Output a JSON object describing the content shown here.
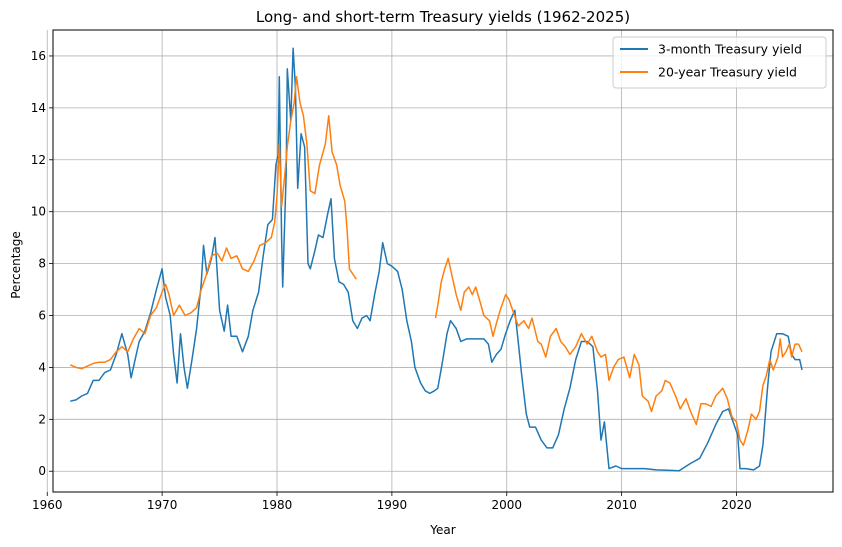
{
  "chart_data": {
    "type": "line",
    "title": "Long- and short-term Treasury yields (1962-2025)",
    "xlabel": "Year",
    "ylabel": "Percentage",
    "xlim": [
      1960.5,
      2028.4
    ],
    "ylim": [
      -0.8,
      17.0
    ],
    "xticks": [
      1960,
      1970,
      1980,
      1990,
      2000,
      2010,
      2020
    ],
    "yticks": [
      0,
      2,
      4,
      6,
      8,
      10,
      12,
      14,
      16
    ],
    "grid": true,
    "legend_position": "upper right",
    "series": [
      {
        "name": "3-month Treasury yield",
        "color": "#1f77b4",
        "points": [
          [
            1962.0,
            2.7
          ],
          [
            1962.5,
            2.75
          ],
          [
            1963.0,
            2.9
          ],
          [
            1963.5,
            3.0
          ],
          [
            1964.0,
            3.5
          ],
          [
            1964.5,
            3.5
          ],
          [
            1965.0,
            3.8
          ],
          [
            1965.5,
            3.9
          ],
          [
            1966.0,
            4.5
          ],
          [
            1966.5,
            5.3
          ],
          [
            1967.0,
            4.5
          ],
          [
            1967.3,
            3.6
          ],
          [
            1967.7,
            4.4
          ],
          [
            1968.0,
            5.0
          ],
          [
            1968.5,
            5.4
          ],
          [
            1969.0,
            6.1
          ],
          [
            1969.5,
            7.0
          ],
          [
            1970.0,
            7.8
          ],
          [
            1970.3,
            6.7
          ],
          [
            1970.7,
            6.0
          ],
          [
            1971.0,
            4.5
          ],
          [
            1971.3,
            3.4
          ],
          [
            1971.6,
            5.3
          ],
          [
            1971.9,
            4.0
          ],
          [
            1972.2,
            3.2
          ],
          [
            1972.6,
            4.3
          ],
          [
            1973.0,
            5.5
          ],
          [
            1973.4,
            7.2
          ],
          [
            1973.6,
            8.7
          ],
          [
            1973.9,
            7.6
          ],
          [
            1974.3,
            8.2
          ],
          [
            1974.6,
            9.0
          ],
          [
            1975.0,
            6.2
          ],
          [
            1975.4,
            5.4
          ],
          [
            1975.7,
            6.4
          ],
          [
            1976.0,
            5.2
          ],
          [
            1976.5,
            5.2
          ],
          [
            1977.0,
            4.6
          ],
          [
            1977.5,
            5.2
          ],
          [
            1977.9,
            6.2
          ],
          [
            1978.4,
            6.9
          ],
          [
            1978.8,
            8.3
          ],
          [
            1979.2,
            9.5
          ],
          [
            1979.6,
            9.7
          ],
          [
            1979.9,
            11.8
          ],
          [
            1980.1,
            12.2
          ],
          [
            1980.2,
            15.2
          ],
          [
            1980.4,
            9.0
          ],
          [
            1980.5,
            7.1
          ],
          [
            1980.8,
            11.5
          ],
          [
            1980.9,
            15.5
          ],
          [
            1981.2,
            13.5
          ],
          [
            1981.4,
            16.3
          ],
          [
            1981.6,
            14.8
          ],
          [
            1981.8,
            10.9
          ],
          [
            1982.1,
            13.0
          ],
          [
            1982.4,
            12.5
          ],
          [
            1982.7,
            8.0
          ],
          [
            1982.9,
            7.8
          ],
          [
            1983.3,
            8.5
          ],
          [
            1983.6,
            9.1
          ],
          [
            1984.0,
            9.0
          ],
          [
            1984.4,
            9.9
          ],
          [
            1984.7,
            10.5
          ],
          [
            1985.0,
            8.2
          ],
          [
            1985.4,
            7.3
          ],
          [
            1985.8,
            7.2
          ],
          [
            1986.2,
            6.9
          ],
          [
            1986.6,
            5.8
          ],
          [
            1987.0,
            5.5
          ],
          [
            1987.4,
            5.9
          ],
          [
            1987.8,
            6.0
          ],
          [
            1988.1,
            5.8
          ],
          [
            1988.5,
            6.8
          ],
          [
            1988.9,
            7.7
          ],
          [
            1989.2,
            8.8
          ],
          [
            1989.6,
            8.0
          ],
          [
            1990.0,
            7.9
          ],
          [
            1990.5,
            7.7
          ],
          [
            1990.9,
            7.0
          ],
          [
            1991.3,
            5.8
          ],
          [
            1991.7,
            5.0
          ],
          [
            1992.0,
            4.0
          ],
          [
            1992.5,
            3.4
          ],
          [
            1992.9,
            3.1
          ],
          [
            1993.3,
            3.0
          ],
          [
            1993.7,
            3.1
          ],
          [
            1994.0,
            3.2
          ],
          [
            1994.4,
            4.2
          ],
          [
            1994.8,
            5.3
          ],
          [
            1995.1,
            5.8
          ],
          [
            1995.6,
            5.5
          ],
          [
            1996.0,
            5.0
          ],
          [
            1996.5,
            5.1
          ],
          [
            1997.0,
            5.1
          ],
          [
            1997.5,
            5.1
          ],
          [
            1998.0,
            5.1
          ],
          [
            1998.4,
            4.9
          ],
          [
            1998.7,
            4.2
          ],
          [
            1999.1,
            4.5
          ],
          [
            1999.5,
            4.7
          ],
          [
            1999.9,
            5.3
          ],
          [
            2000.3,
            5.8
          ],
          [
            2000.7,
            6.2
          ],
          [
            2001.0,
            5.0
          ],
          [
            2001.3,
            3.7
          ],
          [
            2001.7,
            2.2
          ],
          [
            2002.0,
            1.7
          ],
          [
            2002.5,
            1.7
          ],
          [
            2003.0,
            1.2
          ],
          [
            2003.5,
            0.9
          ],
          [
            2004.0,
            0.9
          ],
          [
            2004.5,
            1.4
          ],
          [
            2005.0,
            2.4
          ],
          [
            2005.5,
            3.2
          ],
          [
            2006.0,
            4.3
          ],
          [
            2006.5,
            5.0
          ],
          [
            2007.0,
            5.0
          ],
          [
            2007.5,
            4.8
          ],
          [
            2007.9,
            3.1
          ],
          [
            2008.2,
            1.2
          ],
          [
            2008.5,
            1.9
          ],
          [
            2008.9,
            0.1
          ],
          [
            2009.5,
            0.2
          ],
          [
            2010.0,
            0.1
          ],
          [
            2011.0,
            0.1
          ],
          [
            2012.0,
            0.1
          ],
          [
            2013.0,
            0.05
          ],
          [
            2014.0,
            0.04
          ],
          [
            2015.0,
            0.02
          ],
          [
            2016.0,
            0.3
          ],
          [
            2016.8,
            0.5
          ],
          [
            2017.5,
            1.1
          ],
          [
            2018.2,
            1.8
          ],
          [
            2018.8,
            2.3
          ],
          [
            2019.3,
            2.4
          ],
          [
            2019.7,
            1.9
          ],
          [
            2020.1,
            1.4
          ],
          [
            2020.3,
            0.1
          ],
          [
            2020.8,
            0.1
          ],
          [
            2021.5,
            0.05
          ],
          [
            2022.0,
            0.2
          ],
          [
            2022.3,
            1.0
          ],
          [
            2022.7,
            3.2
          ],
          [
            2023.0,
            4.6
          ],
          [
            2023.5,
            5.3
          ],
          [
            2024.0,
            5.3
          ],
          [
            2024.5,
            5.2
          ],
          [
            2024.8,
            4.5
          ],
          [
            2025.1,
            4.3
          ],
          [
            2025.5,
            4.3
          ],
          [
            2025.7,
            3.9
          ]
        ]
      },
      {
        "name": "20-year Treasury yield",
        "color": "#ff7f0e",
        "points": [
          [
            1962.0,
            4.1
          ],
          [
            1962.5,
            4.0
          ],
          [
            1963.0,
            3.95
          ],
          [
            1963.5,
            4.05
          ],
          [
            1964.0,
            4.15
          ],
          [
            1964.5,
            4.2
          ],
          [
            1965.0,
            4.2
          ],
          [
            1965.5,
            4.3
          ],
          [
            1966.0,
            4.6
          ],
          [
            1966.5,
            4.8
          ],
          [
            1967.0,
            4.6
          ],
          [
            1967.5,
            5.1
          ],
          [
            1968.0,
            5.5
          ],
          [
            1968.5,
            5.3
          ],
          [
            1969.0,
            6.0
          ],
          [
            1969.5,
            6.3
          ],
          [
            1970.0,
            6.9
          ],
          [
            1970.3,
            7.2
          ],
          [
            1970.6,
            6.8
          ],
          [
            1971.0,
            6.0
          ],
          [
            1971.5,
            6.4
          ],
          [
            1972.0,
            6.0
          ],
          [
            1972.5,
            6.1
          ],
          [
            1973.0,
            6.3
          ],
          [
            1973.4,
            7.0
          ],
          [
            1973.8,
            7.5
          ],
          [
            1974.3,
            8.3
          ],
          [
            1974.8,
            8.4
          ],
          [
            1975.2,
            8.1
          ],
          [
            1975.6,
            8.6
          ],
          [
            1976.0,
            8.2
          ],
          [
            1976.5,
            8.3
          ],
          [
            1977.0,
            7.8
          ],
          [
            1977.5,
            7.7
          ],
          [
            1978.0,
            8.1
          ],
          [
            1978.5,
            8.7
          ],
          [
            1979.0,
            8.8
          ],
          [
            1979.5,
            9.0
          ],
          [
            1979.8,
            9.6
          ],
          [
            1980.0,
            10.6
          ],
          [
            1980.2,
            12.6
          ],
          [
            1980.4,
            10.2
          ],
          [
            1980.7,
            11.5
          ],
          [
            1980.9,
            12.5
          ],
          [
            1981.2,
            13.5
          ],
          [
            1981.5,
            14.2
          ],
          [
            1981.7,
            15.2
          ],
          [
            1982.0,
            14.2
          ],
          [
            1982.3,
            13.7
          ],
          [
            1982.6,
            12.6
          ],
          [
            1982.9,
            10.8
          ],
          [
            1983.3,
            10.7
          ],
          [
            1983.7,
            11.8
          ],
          [
            1984.2,
            12.6
          ],
          [
            1984.5,
            13.7
          ],
          [
            1984.8,
            12.3
          ],
          [
            1985.2,
            11.8
          ],
          [
            1985.5,
            11.0
          ],
          [
            1985.9,
            10.4
          ],
          [
            1986.1,
            9.3
          ],
          [
            1986.3,
            7.8
          ],
          [
            1986.6,
            7.6
          ],
          [
            1986.9,
            7.4
          ]
        ]
      },
      {
        "name": "20-year Treasury yield",
        "color": "#ff7f0e",
        "points": [
          [
            1993.8,
            5.9
          ],
          [
            1994.0,
            6.4
          ],
          [
            1994.3,
            7.3
          ],
          [
            1994.6,
            7.8
          ],
          [
            1994.9,
            8.2
          ],
          [
            1995.2,
            7.6
          ],
          [
            1995.6,
            6.8
          ],
          [
            1996.0,
            6.2
          ],
          [
            1996.3,
            6.9
          ],
          [
            1996.7,
            7.1
          ],
          [
            1997.0,
            6.8
          ],
          [
            1997.3,
            7.1
          ],
          [
            1997.7,
            6.5
          ],
          [
            1998.0,
            6.0
          ],
          [
            1998.5,
            5.8
          ],
          [
            1998.8,
            5.2
          ],
          [
            1999.1,
            5.7
          ],
          [
            1999.5,
            6.3
          ],
          [
            1999.9,
            6.8
          ],
          [
            2000.2,
            6.6
          ],
          [
            2000.6,
            6.1
          ],
          [
            2001.0,
            5.6
          ],
          [
            2001.5,
            5.8
          ],
          [
            2001.9,
            5.5
          ],
          [
            2002.2,
            5.9
          ],
          [
            2002.7,
            5.0
          ],
          [
            2003.0,
            4.9
          ],
          [
            2003.4,
            4.4
          ],
          [
            2003.8,
            5.2
          ],
          [
            2004.3,
            5.5
          ],
          [
            2004.7,
            5.0
          ],
          [
            2005.1,
            4.8
          ],
          [
            2005.5,
            4.5
          ],
          [
            2006.0,
            4.8
          ],
          [
            2006.5,
            5.3
          ],
          [
            2007.0,
            4.9
          ],
          [
            2007.4,
            5.2
          ],
          [
            2007.9,
            4.6
          ],
          [
            2008.2,
            4.4
          ],
          [
            2008.6,
            4.5
          ],
          [
            2008.9,
            3.5
          ],
          [
            2009.3,
            4.0
          ],
          [
            2009.7,
            4.3
          ],
          [
            2010.2,
            4.4
          ],
          [
            2010.7,
            3.6
          ],
          [
            2011.1,
            4.5
          ],
          [
            2011.5,
            4.1
          ],
          [
            2011.8,
            2.9
          ],
          [
            2012.3,
            2.7
          ],
          [
            2012.6,
            2.3
          ],
          [
            2013.0,
            2.9
          ],
          [
            2013.5,
            3.1
          ],
          [
            2013.8,
            3.5
          ],
          [
            2014.2,
            3.4
          ],
          [
            2014.7,
            2.9
          ],
          [
            2015.1,
            2.4
          ],
          [
            2015.6,
            2.8
          ],
          [
            2016.0,
            2.3
          ],
          [
            2016.5,
            1.8
          ],
          [
            2016.9,
            2.6
          ],
          [
            2017.3,
            2.6
          ],
          [
            2017.8,
            2.5
          ],
          [
            2018.2,
            2.9
          ],
          [
            2018.8,
            3.2
          ],
          [
            2019.2,
            2.8
          ],
          [
            2019.6,
            2.1
          ],
          [
            2020.0,
            1.9
          ],
          [
            2020.3,
            1.2
          ],
          [
            2020.6,
            1.0
          ],
          [
            2021.0,
            1.6
          ],
          [
            2021.3,
            2.2
          ],
          [
            2021.7,
            2.0
          ],
          [
            2022.0,
            2.3
          ],
          [
            2022.3,
            3.3
          ],
          [
            2022.6,
            3.7
          ],
          [
            2022.9,
            4.3
          ],
          [
            2023.2,
            3.9
          ],
          [
            2023.6,
            4.4
          ],
          [
            2023.8,
            5.1
          ],
          [
            2024.0,
            4.4
          ],
          [
            2024.3,
            4.6
          ],
          [
            2024.6,
            4.9
          ],
          [
            2024.8,
            4.4
          ],
          [
            2025.1,
            4.9
          ],
          [
            2025.4,
            4.9
          ],
          [
            2025.7,
            4.6
          ]
        ]
      }
    ]
  }
}
